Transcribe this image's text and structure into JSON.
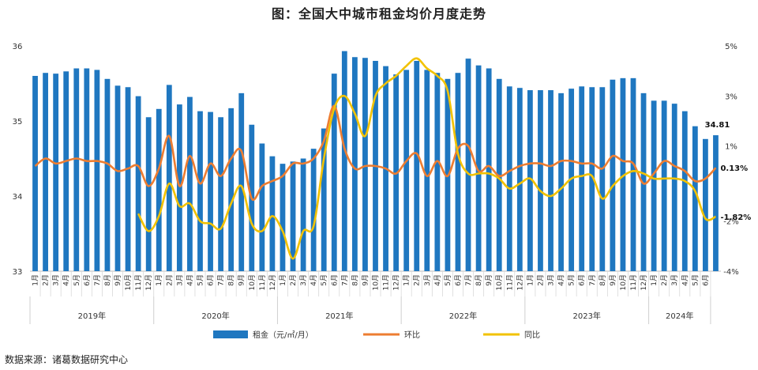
{
  "title": "图：全国大中城市租金均价月度走势",
  "source": "数据来源：诸葛数据研究中心",
  "chart_data": {
    "type": "bar+line",
    "months": [
      "1月",
      "2月",
      "3月",
      "4月",
      "5月",
      "6月",
      "7月",
      "8月",
      "9月",
      "10月",
      "11月",
      "12月"
    ],
    "years": [
      "2019年",
      "2020年",
      "2021年",
      "2022年",
      "2023年",
      "2024年"
    ],
    "year_spans": [
      12,
      12,
      12,
      12,
      12,
      6
    ],
    "left_axis": {
      "min": 33,
      "max": 36,
      "ticks": [
        "33",
        "34",
        "35",
        "36"
      ]
    },
    "right_axis": {
      "min": -4,
      "max": 5,
      "ticks": [
        "-4%",
        "-2%",
        "1%",
        "3%",
        "5%"
      ]
    },
    "series": [
      {
        "name": "租金（元/㎡/月）",
        "type": "bar",
        "axis": "left",
        "color": "#1f77c0",
        "values": [
          35.6,
          35.64,
          35.63,
          35.66,
          35.7,
          35.7,
          35.68,
          35.56,
          35.47,
          35.45,
          35.33,
          35.05,
          35.16,
          35.48,
          35.22,
          35.32,
          35.13,
          35.12,
          35.05,
          35.17,
          35.37,
          34.95,
          34.7,
          34.53,
          34.43,
          34.46,
          34.5,
          34.63,
          34.9,
          35.63,
          35.93,
          35.85,
          35.84,
          35.8,
          35.73,
          35.62,
          35.68,
          35.8,
          35.68,
          35.64,
          35.56,
          35.64,
          35.83,
          35.74,
          35.7,
          35.56,
          35.46,
          35.44,
          35.41,
          35.41,
          35.41,
          35.37,
          35.43,
          35.46,
          35.45,
          35.45,
          35.55,
          35.57,
          35.57,
          35.37,
          35.27,
          35.27,
          35.23,
          35.13,
          34.93,
          34.76,
          34.81
        ]
      },
      {
        "name": "环比",
        "type": "line",
        "axis": "right",
        "color": "#ed7d31",
        "values": [
          0.2,
          0.5,
          0.3,
          0.4,
          0.5,
          0.4,
          0.4,
          0.3,
          0.0,
          0.1,
          0.2,
          -0.6,
          0.1,
          1.4,
          -0.6,
          0.6,
          -0.5,
          0.3,
          -0.2,
          0.5,
          0.8,
          -1.1,
          -0.6,
          -0.4,
          -0.2,
          0.3,
          0.3,
          0.5,
          1.2,
          2.6,
          0.9,
          0.1,
          0.2,
          0.2,
          0.1,
          -0.1,
          0.4,
          0.7,
          -0.2,
          0.4,
          -0.2,
          0.9,
          1.0,
          0.0,
          0.2,
          -0.2,
          0.0,
          0.2,
          0.3,
          0.3,
          0.2,
          0.4,
          0.4,
          0.3,
          0.3,
          0.1,
          0.6,
          0.4,
          0.3,
          -0.5,
          -0.1,
          0.4,
          0.2,
          0.0,
          -0.4,
          -0.3,
          0.13
        ]
      },
      {
        "name": "同比",
        "type": "line",
        "axis": "right",
        "color": "#f2c200",
        "values": [
          null,
          null,
          null,
          null,
          null,
          null,
          null,
          null,
          null,
          null,
          -1.7,
          -2.4,
          -1.8,
          -0.5,
          -1.4,
          -1.3,
          -2.0,
          -2.1,
          -2.3,
          -1.3,
          -0.6,
          -2.1,
          -2.4,
          -1.8,
          -2.4,
          -3.5,
          -2.4,
          -2.2,
          0.5,
          2.5,
          3.0,
          2.3,
          1.4,
          3.0,
          3.5,
          3.8,
          4.2,
          4.5,
          4.1,
          3.8,
          3.2,
          0.7,
          -0.1,
          -0.1,
          -0.1,
          -0.3,
          -0.7,
          -0.5,
          -0.3,
          -0.8,
          -1.0,
          -0.7,
          -0.3,
          -0.2,
          -0.2,
          -1.1,
          -0.6,
          -0.2,
          0.0,
          -0.1,
          -0.3,
          -0.3,
          -0.3,
          -0.4,
          -0.8,
          -1.9,
          -1.82
        ]
      }
    ],
    "end_labels": {
      "rent": "34.81",
      "mom": "0.13%",
      "yoy": "-1.82%"
    }
  }
}
